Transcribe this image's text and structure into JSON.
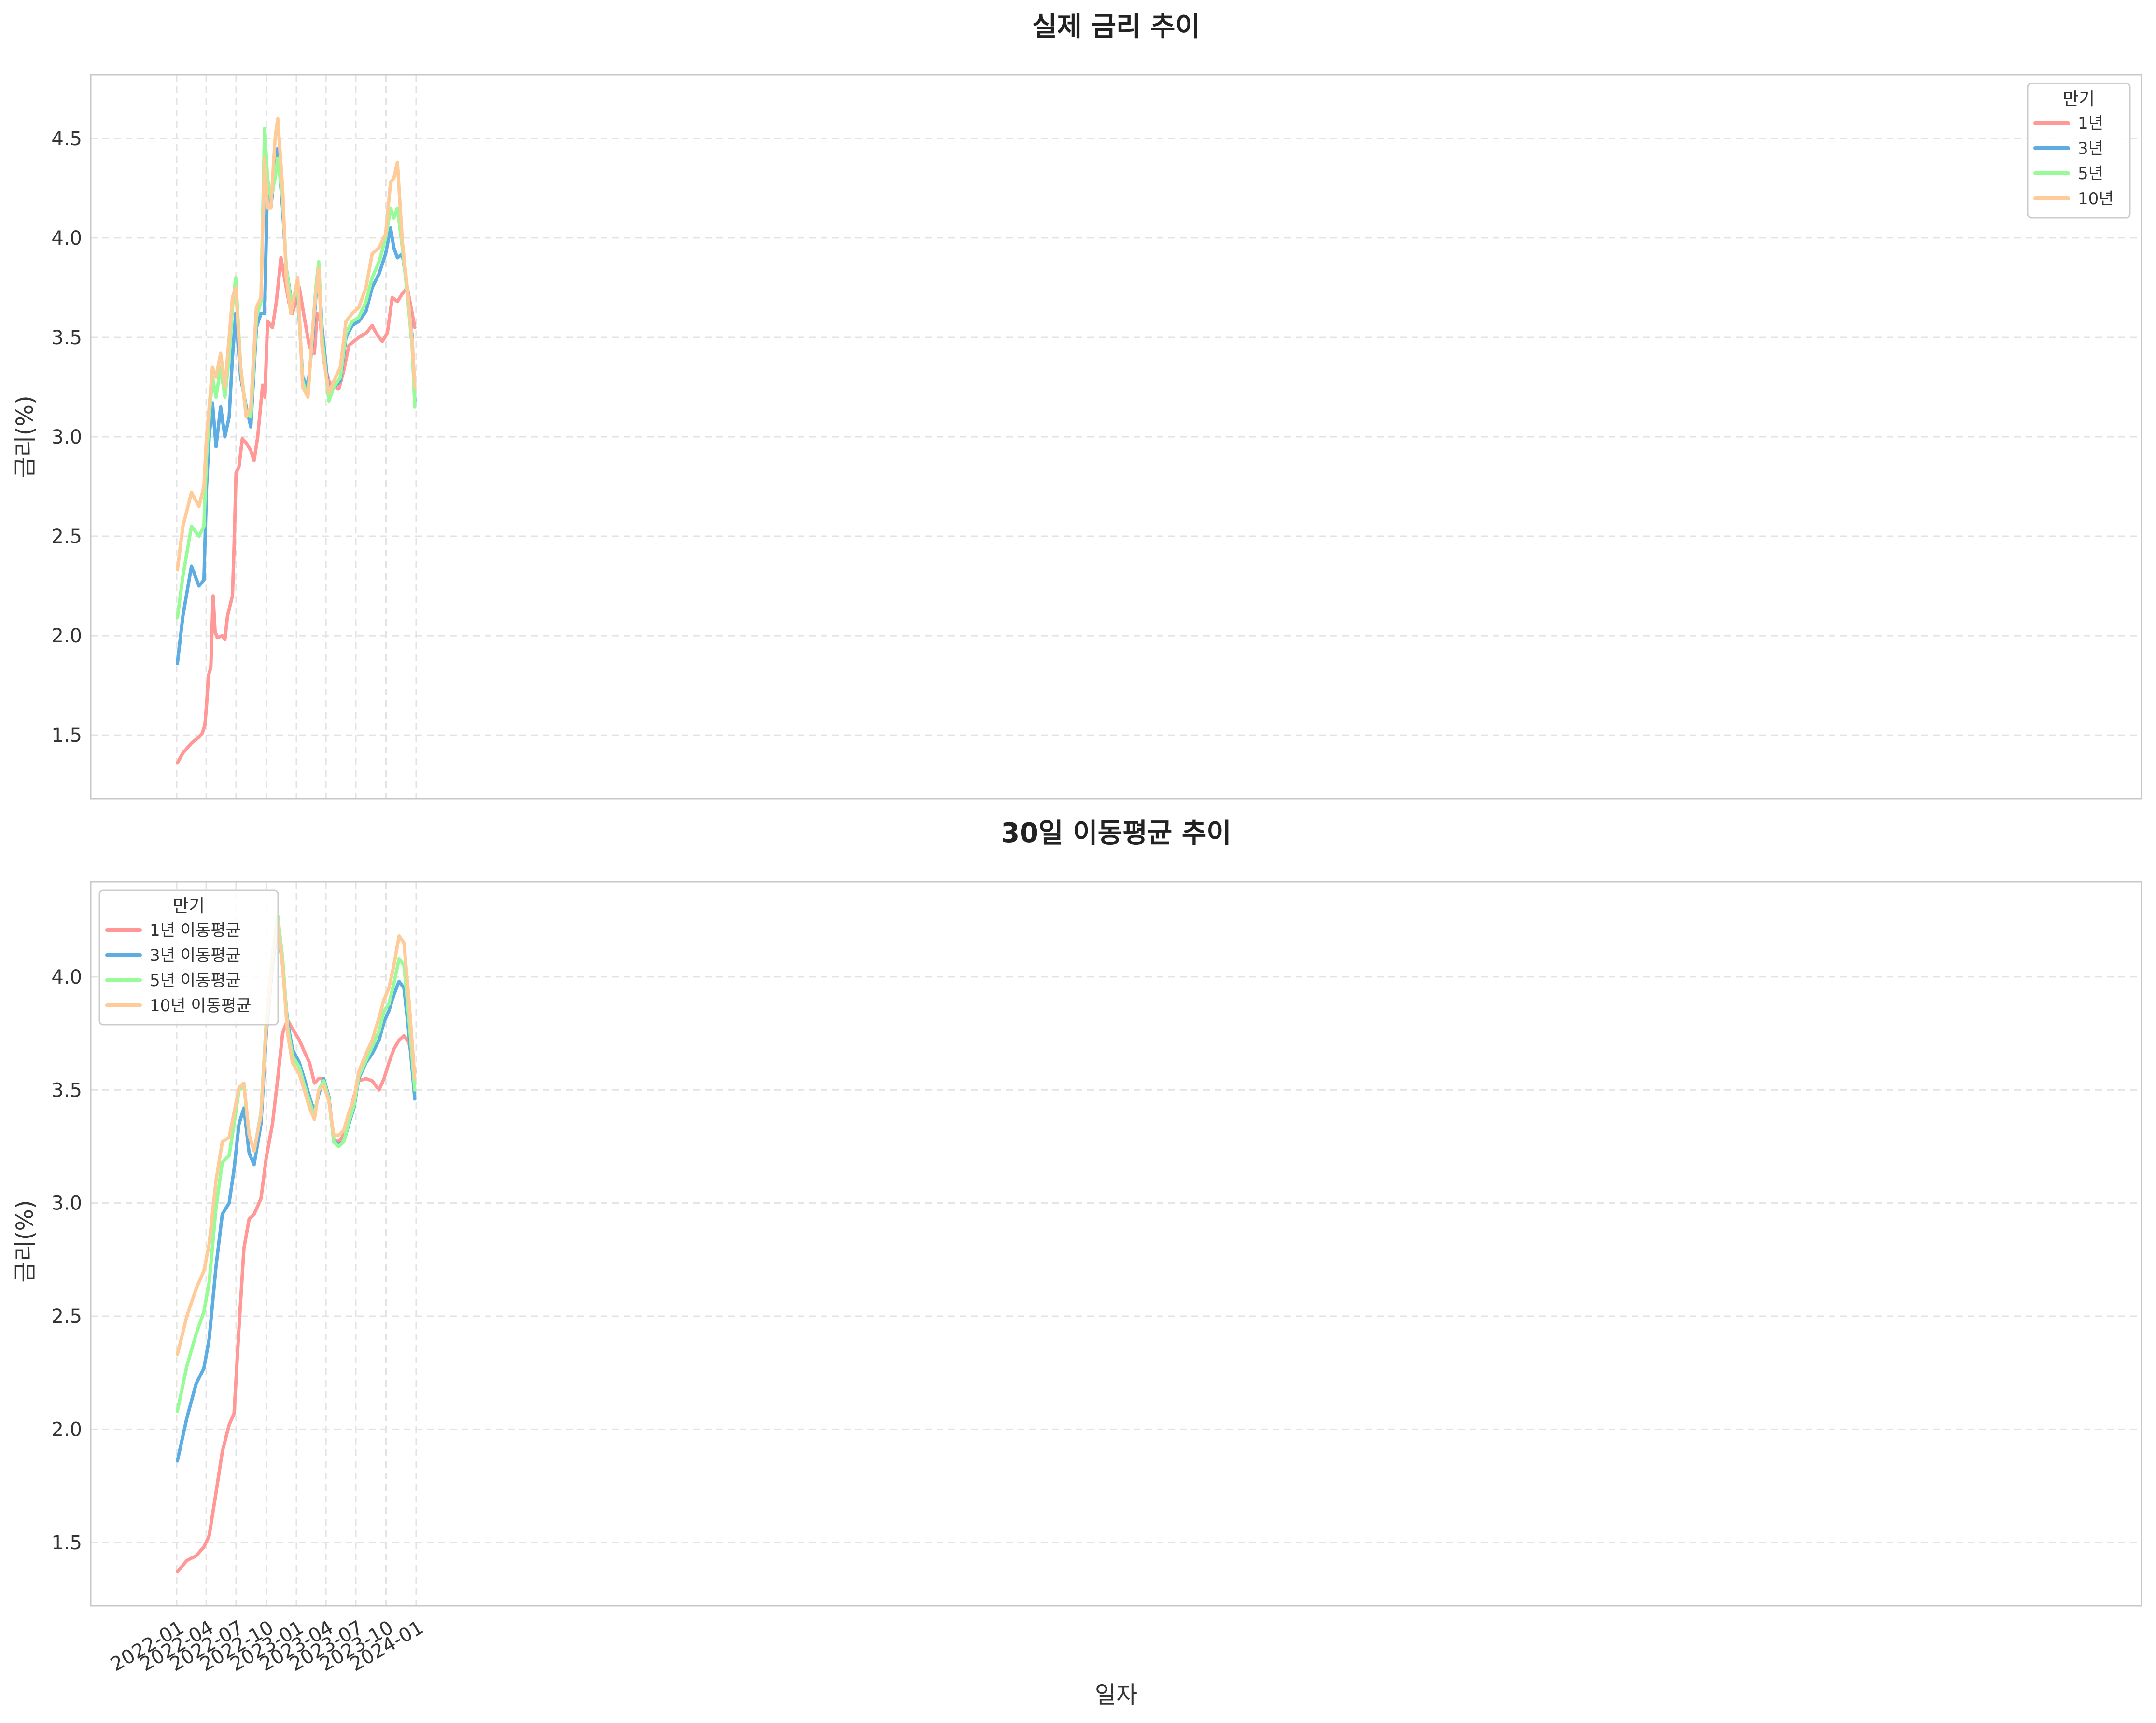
{
  "chart_data": [
    {
      "type": "line",
      "title": "실제 금리 추이",
      "xlabel": "",
      "ylabel": "금리(%)",
      "ylim": [
        1.18,
        4.82
      ],
      "yticks": [
        "1.5",
        "2.0",
        "2.5",
        "3.0",
        "3.5",
        "4.0",
        "4.5"
      ],
      "grid": true,
      "legend": {
        "title": "만기",
        "position": "upper right"
      },
      "series": [
        {
          "name": "1년",
          "color": "#ff9896",
          "x": [
            "2022-01-03",
            "2022-01-20",
            "2022-02-15",
            "2022-03-10",
            "2022-03-20",
            "2022-03-28",
            "2022-04-02",
            "2022-04-08",
            "2022-04-15",
            "2022-04-22",
            "2022-04-28",
            "2022-05-05",
            "2022-05-20",
            "2022-05-28",
            "2022-06-05",
            "2022-06-20",
            "2022-06-25",
            "2022-07-01",
            "2022-07-10",
            "2022-07-20",
            "2022-08-01",
            "2022-08-15",
            "2022-08-25",
            "2022-09-05",
            "2022-09-20",
            "2022-09-27",
            "2022-10-05",
            "2022-10-20",
            "2022-11-01",
            "2022-11-15",
            "2022-12-01",
            "2022-12-10",
            "2022-12-20",
            "2023-01-10",
            "2023-01-25",
            "2023-02-10",
            "2023-02-25",
            "2023-03-05",
            "2023-03-15",
            "2023-03-25",
            "2023-04-10",
            "2023-04-25",
            "2023-05-10",
            "2023-05-25",
            "2023-06-10",
            "2023-06-25",
            "2023-07-10",
            "2023-08-01",
            "2023-08-20",
            "2023-09-05",
            "2023-09-20",
            "2023-10-05",
            "2023-10-20",
            "2023-11-05",
            "2023-11-20",
            "2023-12-05",
            "2023-12-20",
            "2023-12-28"
          ],
          "y": [
            1.36,
            1.41,
            1.46,
            1.49,
            1.51,
            1.55,
            1.65,
            1.8,
            1.84,
            2.2,
            2.02,
            1.99,
            2.0,
            1.98,
            2.1,
            2.2,
            2.45,
            2.82,
            2.85,
            2.99,
            2.97,
            2.93,
            2.88,
            3.0,
            3.26,
            3.2,
            3.58,
            3.55,
            3.68,
            3.9,
            3.75,
            3.67,
            3.62,
            3.75,
            3.6,
            3.45,
            3.42,
            3.62,
            3.58,
            3.38,
            3.28,
            3.25,
            3.24,
            3.33,
            3.46,
            3.48,
            3.5,
            3.52,
            3.56,
            3.51,
            3.48,
            3.52,
            3.7,
            3.68,
            3.72,
            3.75,
            3.62,
            3.55
          ]
        },
        {
          "name": "3년",
          "color": "#5dade2",
          "x": [
            "2022-01-03",
            "2022-01-20",
            "2022-02-15",
            "2022-03-10",
            "2022-03-25",
            "2022-04-02",
            "2022-04-10",
            "2022-04-20",
            "2022-05-01",
            "2022-05-15",
            "2022-05-28",
            "2022-06-10",
            "2022-06-20",
            "2022-06-30",
            "2022-07-15",
            "2022-08-01",
            "2022-08-15",
            "2022-09-01",
            "2022-09-15",
            "2022-09-26",
            "2022-10-05",
            "2022-10-15",
            "2022-10-28",
            "2022-11-05",
            "2022-11-20",
            "2022-12-01",
            "2022-12-15",
            "2023-01-05",
            "2023-01-20",
            "2023-02-05",
            "2023-02-20",
            "2023-03-01",
            "2023-03-10",
            "2023-03-20",
            "2023-04-10",
            "2023-04-25",
            "2023-05-15",
            "2023-06-01",
            "2023-06-20",
            "2023-07-10",
            "2023-08-01",
            "2023-08-20",
            "2023-09-10",
            "2023-09-30",
            "2023-10-15",
            "2023-10-25",
            "2023-11-05",
            "2023-11-20",
            "2023-12-05",
            "2023-12-20",
            "2023-12-28"
          ],
          "y": [
            1.86,
            2.1,
            2.35,
            2.25,
            2.28,
            2.75,
            3.0,
            3.17,
            2.95,
            3.15,
            3.0,
            3.1,
            3.4,
            3.62,
            3.3,
            3.15,
            3.05,
            3.55,
            3.62,
            3.62,
            4.3,
            4.15,
            4.35,
            4.45,
            4.15,
            3.85,
            3.7,
            3.72,
            3.3,
            3.25,
            3.5,
            3.7,
            3.85,
            3.55,
            3.22,
            3.25,
            3.28,
            3.5,
            3.56,
            3.58,
            3.63,
            3.75,
            3.82,
            3.92,
            4.05,
            3.95,
            3.9,
            3.92,
            3.75,
            3.5,
            3.18
          ]
        },
        {
          "name": "5년",
          "color": "#98fb98",
          "x": [
            "2022-01-03",
            "2022-01-20",
            "2022-02-15",
            "2022-03-10",
            "2022-03-25",
            "2022-04-02",
            "2022-04-10",
            "2022-04-20",
            "2022-05-01",
            "2022-05-15",
            "2022-05-28",
            "2022-06-10",
            "2022-06-20",
            "2022-06-30",
            "2022-07-15",
            "2022-08-01",
            "2022-08-15",
            "2022-09-01",
            "2022-09-15",
            "2022-09-26",
            "2022-10-05",
            "2022-10-15",
            "2022-10-28",
            "2022-11-05",
            "2022-11-20",
            "2022-12-01",
            "2022-12-15",
            "2023-01-05",
            "2023-01-20",
            "2023-02-05",
            "2023-02-20",
            "2023-03-01",
            "2023-03-10",
            "2023-03-20",
            "2023-04-10",
            "2023-04-25",
            "2023-05-15",
            "2023-06-01",
            "2023-06-20",
            "2023-07-10",
            "2023-08-01",
            "2023-08-20",
            "2023-09-10",
            "2023-09-30",
            "2023-10-15",
            "2023-10-25",
            "2023-11-05",
            "2023-11-20",
            "2023-12-05",
            "2023-12-20",
            "2023-12-28"
          ],
          "y": [
            2.09,
            2.3,
            2.55,
            2.5,
            2.55,
            2.9,
            3.1,
            3.3,
            3.2,
            3.35,
            3.2,
            3.4,
            3.65,
            3.8,
            3.35,
            3.12,
            3.1,
            3.6,
            3.68,
            4.55,
            4.3,
            4.2,
            4.3,
            4.4,
            4.2,
            3.85,
            3.68,
            3.75,
            3.28,
            3.2,
            3.55,
            3.75,
            3.88,
            3.5,
            3.18,
            3.25,
            3.3,
            3.52,
            3.58,
            3.6,
            3.68,
            3.8,
            3.88,
            4.0,
            4.15,
            4.1,
            4.15,
            3.95,
            3.72,
            3.45,
            3.15
          ]
        },
        {
          "name": "10년",
          "color": "#ffcc99",
          "x": [
            "2022-01-03",
            "2022-01-20",
            "2022-02-15",
            "2022-03-10",
            "2022-03-25",
            "2022-04-02",
            "2022-04-10",
            "2022-04-20",
            "2022-05-01",
            "2022-05-15",
            "2022-05-28",
            "2022-06-10",
            "2022-06-20",
            "2022-06-30",
            "2022-07-15",
            "2022-08-01",
            "2022-08-15",
            "2022-09-01",
            "2022-09-15",
            "2022-09-26",
            "2022-10-05",
            "2022-10-15",
            "2022-10-28",
            "2022-11-05",
            "2022-11-20",
            "2022-12-01",
            "2022-12-15",
            "2023-01-05",
            "2023-01-20",
            "2023-02-05",
            "2023-02-20",
            "2023-03-01",
            "2023-03-10",
            "2023-03-20",
            "2023-04-10",
            "2023-04-25",
            "2023-05-15",
            "2023-06-01",
            "2023-06-20",
            "2023-07-10",
            "2023-08-01",
            "2023-08-20",
            "2023-09-10",
            "2023-09-30",
            "2023-10-15",
            "2023-10-25",
            "2023-11-05",
            "2023-11-20",
            "2023-12-05",
            "2023-12-20",
            "2023-12-28"
          ],
          "y": [
            2.33,
            2.55,
            2.72,
            2.65,
            2.75,
            3.0,
            3.15,
            3.35,
            3.3,
            3.42,
            3.25,
            3.5,
            3.7,
            3.75,
            3.35,
            3.1,
            3.15,
            3.65,
            3.7,
            4.4,
            4.15,
            4.15,
            4.5,
            4.6,
            4.25,
            3.8,
            3.62,
            3.8,
            3.25,
            3.2,
            3.55,
            3.72,
            3.85,
            3.45,
            3.22,
            3.28,
            3.35,
            3.58,
            3.62,
            3.65,
            3.75,
            3.92,
            3.95,
            4.02,
            4.28,
            4.3,
            4.38,
            3.98,
            3.75,
            3.48,
            3.25
          ]
        }
      ]
    },
    {
      "type": "line",
      "title": "30일 이동평균 추이",
      "xlabel": "일자",
      "ylabel": "금리(%)",
      "ylim": [
        1.22,
        4.42
      ],
      "yticks": [
        "1.5",
        "2.0",
        "2.5",
        "3.0",
        "3.5",
        "4.0"
      ],
      "xticks": [
        "2022-01",
        "2022-04",
        "2022-07",
        "2022-10",
        "2023-01",
        "2023-04",
        "2023-07",
        "2023-10",
        "2024-01"
      ],
      "grid": true,
      "legend": {
        "title": "만기",
        "position": "upper left"
      },
      "series": [
        {
          "name": "1년 이동평균",
          "color": "#ff9896",
          "x": [
            "2022-01-03",
            "2022-02-01",
            "2022-03-01",
            "2022-03-25",
            "2022-04-10",
            "2022-05-01",
            "2022-05-20",
            "2022-06-10",
            "2022-06-25",
            "2022-07-10",
            "2022-07-25",
            "2022-08-10",
            "2022-08-25",
            "2022-09-15",
            "2022-10-01",
            "2022-10-20",
            "2022-11-05",
            "2022-11-20",
            "2022-12-05",
            "2022-12-20",
            "2023-01-10",
            "2023-01-25",
            "2023-02-10",
            "2023-02-25",
            "2023-03-10",
            "2023-03-25",
            "2023-04-10",
            "2023-04-25",
            "2023-05-10",
            "2023-05-25",
            "2023-06-10",
            "2023-06-25",
            "2023-07-10",
            "2023-08-01",
            "2023-08-20",
            "2023-09-10",
            "2023-09-25",
            "2023-10-10",
            "2023-10-25",
            "2023-11-10",
            "2023-11-25",
            "2023-12-10",
            "2023-12-28"
          ],
          "y": [
            1.37,
            1.42,
            1.44,
            1.48,
            1.53,
            1.72,
            1.9,
            2.02,
            2.07,
            2.45,
            2.8,
            2.93,
            2.95,
            3.02,
            3.2,
            3.35,
            3.55,
            3.75,
            3.81,
            3.77,
            3.72,
            3.67,
            3.62,
            3.53,
            3.55,
            3.55,
            3.47,
            3.28,
            3.27,
            3.3,
            3.38,
            3.47,
            3.54,
            3.55,
            3.54,
            3.5,
            3.55,
            3.62,
            3.68,
            3.72,
            3.74,
            3.71,
            3.58
          ]
        },
        {
          "name": "3년 이동평균",
          "color": "#5dade2",
          "x": [
            "2022-01-03",
            "2022-02-01",
            "2022-03-01",
            "2022-03-25",
            "2022-04-10",
            "2022-05-01",
            "2022-05-20",
            "2022-06-10",
            "2022-06-25",
            "2022-07-10",
            "2022-07-25",
            "2022-08-10",
            "2022-08-25",
            "2022-09-15",
            "2022-10-01",
            "2022-10-20",
            "2022-11-05",
            "2022-11-20",
            "2022-12-05",
            "2022-12-20",
            "2023-01-10",
            "2023-01-25",
            "2023-02-10",
            "2023-02-25",
            "2023-03-10",
            "2023-03-25",
            "2023-04-10",
            "2023-04-25",
            "2023-05-10",
            "2023-05-25",
            "2023-06-10",
            "2023-06-25",
            "2023-07-10",
            "2023-08-01",
            "2023-08-20",
            "2023-09-10",
            "2023-09-25",
            "2023-10-10",
            "2023-10-25",
            "2023-11-10",
            "2023-11-25",
            "2023-12-10",
            "2023-12-28"
          ],
          "y": [
            1.86,
            2.05,
            2.2,
            2.27,
            2.4,
            2.72,
            2.95,
            3.0,
            3.15,
            3.35,
            3.42,
            3.22,
            3.17,
            3.35,
            3.75,
            4.05,
            4.22,
            4.05,
            3.8,
            3.68,
            3.62,
            3.55,
            3.47,
            3.4,
            3.48,
            3.55,
            3.47,
            3.27,
            3.26,
            3.27,
            3.35,
            3.42,
            3.55,
            3.62,
            3.66,
            3.72,
            3.8,
            3.85,
            3.92,
            3.98,
            3.95,
            3.75,
            3.46
          ]
        },
        {
          "name": "5년 이동평균",
          "color": "#98fb98",
          "x": [
            "2022-01-03",
            "2022-02-01",
            "2022-03-01",
            "2022-03-25",
            "2022-04-10",
            "2022-05-01",
            "2022-05-20",
            "2022-06-10",
            "2022-06-25",
            "2022-07-10",
            "2022-07-25",
            "2022-08-10",
            "2022-08-25",
            "2022-09-15",
            "2022-10-01",
            "2022-10-20",
            "2022-11-05",
            "2022-11-20",
            "2022-12-05",
            "2022-12-20",
            "2023-01-10",
            "2023-01-25",
            "2023-02-10",
            "2023-02-25",
            "2023-03-10",
            "2023-03-25",
            "2023-04-10",
            "2023-04-25",
            "2023-05-10",
            "2023-05-25",
            "2023-06-10",
            "2023-06-25",
            "2023-07-10",
            "2023-08-01",
            "2023-08-20",
            "2023-09-10",
            "2023-09-25",
            "2023-10-10",
            "2023-10-25",
            "2023-11-10",
            "2023-11-25",
            "2023-12-10",
            "2023-12-28"
          ],
          "y": [
            2.08,
            2.28,
            2.42,
            2.52,
            2.65,
            2.98,
            3.18,
            3.21,
            3.35,
            3.5,
            3.52,
            3.3,
            3.23,
            3.4,
            3.8,
            4.1,
            4.27,
            4.08,
            3.78,
            3.65,
            3.6,
            3.52,
            3.45,
            3.38,
            3.5,
            3.54,
            3.46,
            3.27,
            3.25,
            3.27,
            3.36,
            3.43,
            3.56,
            3.63,
            3.69,
            3.76,
            3.85,
            3.88,
            3.97,
            4.08,
            4.05,
            3.82,
            3.5
          ]
        },
        {
          "name": "10년 이동평균",
          "color": "#ffcc99",
          "x": [
            "2022-01-03",
            "2022-02-01",
            "2022-03-01",
            "2022-03-25",
            "2022-04-10",
            "2022-05-01",
            "2022-05-20",
            "2022-06-10",
            "2022-06-25",
            "2022-07-10",
            "2022-07-25",
            "2022-08-10",
            "2022-08-25",
            "2022-09-15",
            "2022-10-01",
            "2022-10-20",
            "2022-11-05",
            "2022-11-20",
            "2022-12-05",
            "2022-12-20",
            "2023-01-10",
            "2023-01-25",
            "2023-02-10",
            "2023-02-25",
            "2023-03-10",
            "2023-03-25",
            "2023-04-10",
            "2023-04-25",
            "2023-05-10",
            "2023-05-25",
            "2023-06-10",
            "2023-06-25",
            "2023-07-10",
            "2023-08-01",
            "2023-08-20",
            "2023-09-10",
            "2023-09-25",
            "2023-10-10",
            "2023-10-25",
            "2023-11-10",
            "2023-11-25",
            "2023-12-10",
            "2023-12-28"
          ],
          "y": [
            2.33,
            2.5,
            2.62,
            2.7,
            2.82,
            3.1,
            3.27,
            3.29,
            3.4,
            3.51,
            3.53,
            3.3,
            3.23,
            3.39,
            3.78,
            4.08,
            4.24,
            4.05,
            3.75,
            3.62,
            3.57,
            3.5,
            3.42,
            3.37,
            3.5,
            3.52,
            3.45,
            3.3,
            3.3,
            3.32,
            3.4,
            3.46,
            3.58,
            3.66,
            3.72,
            3.82,
            3.9,
            3.95,
            4.05,
            4.18,
            4.15,
            3.9,
            3.55
          ]
        }
      ]
    }
  ]
}
